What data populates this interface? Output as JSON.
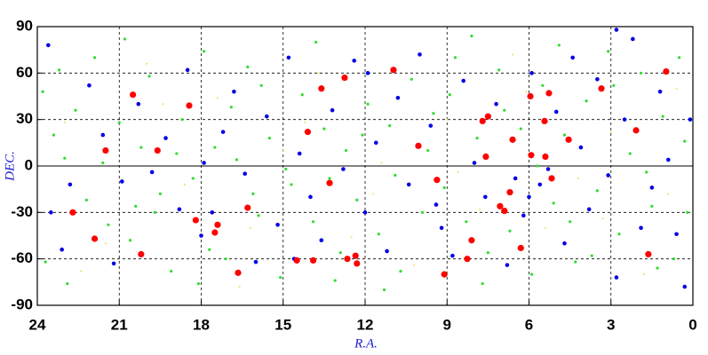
{
  "chart_data": {
    "type": "scatter",
    "xlabel": "R.A.",
    "ylabel": "DEC.",
    "xlim": [
      24,
      0
    ],
    "xticks": [
      24,
      21,
      18,
      15,
      12,
      9,
      6,
      3,
      0
    ],
    "ylim": [
      -90,
      90
    ],
    "yticks": [
      -90,
      -60,
      -30,
      0,
      30,
      60,
      90
    ],
    "grid": true,
    "series": [
      {
        "color": "#f2e27a",
        "x": [
          23.0,
          21.5,
          20.0,
          18.6,
          17.4,
          16.2,
          15.0,
          13.7,
          12.5,
          11.4,
          10.2,
          9.0,
          7.8,
          6.6,
          5.4,
          4.2,
          3.0,
          1.8,
          0.6,
          22.4,
          19.4,
          16.6,
          14.2,
          11.7,
          8.6,
          6.1,
          3.3,
          0.9
        ],
        "values": [
          28,
          -50,
          66,
          -12,
          44,
          -40,
          10,
          60,
          -46,
          2,
          -64,
          30,
          -28,
          72,
          -40,
          -8,
          22,
          -70,
          50,
          -68,
          40,
          -78,
          28,
          -18,
          -4,
          48,
          -34,
          -18
        ]
      },
      {
        "color": "#2fdc2f",
        "x": [
          23.8,
          23.4,
          23.0,
          22.6,
          22.2,
          21.9,
          21.4,
          21.0,
          20.6,
          20.2,
          19.9,
          19.5,
          19.1,
          18.7,
          18.3,
          17.9,
          17.5,
          17.1,
          16.7,
          16.3,
          15.9,
          15.5,
          15.1,
          14.7,
          14.3,
          13.9,
          13.5,
          13.1,
          12.7,
          12.3,
          11.9,
          11.5,
          11.1,
          10.7,
          10.3,
          9.9,
          9.5,
          9.1,
          8.7,
          8.3,
          7.9,
          7.5,
          7.1,
          6.7,
          6.3,
          5.9,
          5.5,
          5.1,
          4.7,
          4.3,
          3.9,
          3.5,
          3.1,
          2.7,
          2.3,
          1.9,
          1.5,
          1.1,
          0.7,
          0.3,
          23.7,
          22.9,
          21.6,
          20.8,
          19.7,
          18.9,
          17.7,
          16.9,
          15.8,
          14.9,
          13.8,
          12.9,
          12.1,
          10.9,
          9.7,
          8.9,
          7.7,
          6.9,
          5.7,
          4.9,
          3.7,
          2.9,
          1.7,
          0.5,
          23.2,
          20.4,
          18.1,
          16.1,
          13.3,
          11.3,
          8.1,
          4.5,
          1.3,
          0.2
        ],
        "values": [
          48,
          20,
          5,
          36,
          -22,
          70,
          -38,
          28,
          -48,
          12,
          58,
          -18,
          -68,
          30,
          -8,
          74,
          12,
          -60,
          4,
          64,
          -32,
          18,
          -72,
          -12,
          46,
          -36,
          24,
          -74,
          10,
          -22,
          40,
          -44,
          26,
          -68,
          56,
          -30,
          34,
          -14,
          70,
          -36,
          18,
          -56,
          62,
          -42,
          24,
          -70,
          52,
          -24,
          20,
          -62,
          42,
          -16,
          74,
          -44,
          8,
          60,
          -26,
          32,
          -60,
          16,
          -62,
          -76,
          2,
          82,
          -30,
          8,
          -54,
          38,
          52,
          -2,
          80,
          -56,
          20,
          -6,
          10,
          46,
          -76,
          36,
          0,
          78,
          -58,
          52,
          -4,
          70,
          62,
          -26,
          -76,
          -18,
          -8,
          -80,
          84,
          -36,
          -66,
          -30
        ]
      },
      {
        "color": "#0000e6",
        "x": [
          23.6,
          22.1,
          21.6,
          22.8,
          23.1,
          21.2,
          20.3,
          19.8,
          19.3,
          18.8,
          18.5,
          18.0,
          17.6,
          17.2,
          16.8,
          16.4,
          16.0,
          15.6,
          15.2,
          14.8,
          14.4,
          14.0,
          13.6,
          13.2,
          12.8,
          12.4,
          12.0,
          11.6,
          11.2,
          10.8,
          10.4,
          10.0,
          9.6,
          9.2,
          8.8,
          8.4,
          8.0,
          7.6,
          7.2,
          6.8,
          6.5,
          6.2,
          5.9,
          5.6,
          5.3,
          5.0,
          4.7,
          4.4,
          4.1,
          3.8,
          3.5,
          3.1,
          2.8,
          2.5,
          2.2,
          1.9,
          1.5,
          1.2,
          0.9,
          0.6,
          0.3,
          0.1,
          2.8,
          20.9,
          17.9,
          14.6,
          11.9,
          9.4,
          6.0,
          23.5
        ],
        "values": [
          78,
          52,
          20,
          -12,
          -54,
          -63,
          40,
          -4,
          18,
          -28,
          62,
          -45,
          -30,
          22,
          48,
          -5,
          -62,
          32,
          -38,
          70,
          8,
          -20,
          -48,
          36,
          -2,
          68,
          -30,
          15,
          -55,
          44,
          -12,
          72,
          26,
          -40,
          -58,
          55,
          2,
          -20,
          40,
          -64,
          -8,
          -32,
          60,
          -12,
          -2,
          35,
          -50,
          70,
          12,
          -28,
          56,
          -6,
          -72,
          30,
          82,
          -40,
          -14,
          48,
          4,
          -44,
          -78,
          30,
          88,
          -10,
          2,
          -60,
          60,
          -25,
          -20,
          -30
        ]
      },
      {
        "color": "#ff0000",
        "x": [
          20.5,
          21.5,
          18.44,
          19.6,
          22.7,
          21.9,
          20.2,
          18.2,
          17.4,
          17.5,
          16.65,
          16.3,
          14.1,
          13.6,
          12.75,
          13.3,
          14.5,
          13.9,
          12.65,
          12.35,
          12.3,
          10.96,
          10.05,
          9.37,
          9.1,
          8.26,
          8.1,
          7.7,
          7.5,
          7.58,
          7.06,
          6.9,
          6.7,
          6.3,
          6.6,
          5.95,
          5.92,
          5.27,
          5.43,
          5.4,
          5.17,
          4.55,
          3.35,
          2.08,
          1.63,
          0.98
        ],
        "values": [
          46,
          10,
          39,
          10,
          -30,
          -47,
          -57,
          -35,
          -38,
          -43,
          -69,
          -27,
          22,
          50,
          57,
          -11,
          -61,
          -61,
          -60,
          -58,
          -63,
          62,
          13,
          -9,
          -70,
          -60,
          -48,
          29,
          32,
          6,
          -26,
          -29,
          -17,
          -53,
          17,
          45,
          7,
          47,
          29,
          6,
          -8,
          17,
          50,
          23,
          -57,
          61
        ]
      }
    ]
  }
}
